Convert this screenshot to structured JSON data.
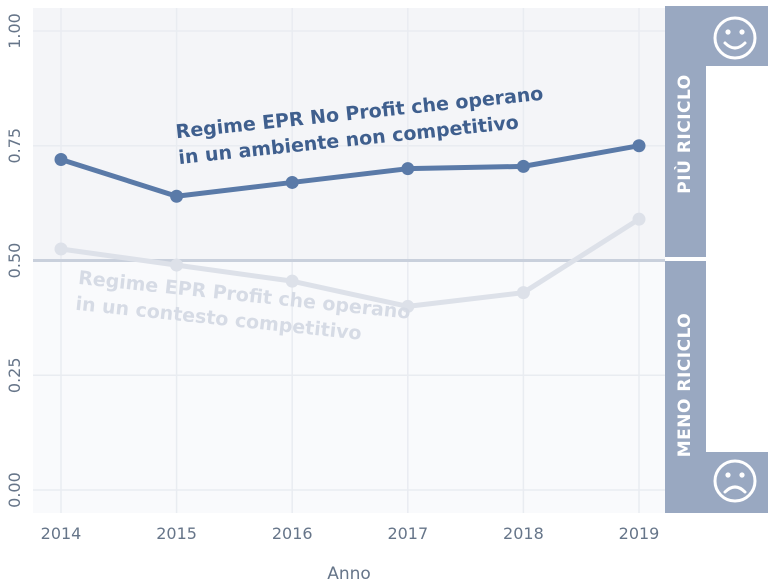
{
  "chart_data": {
    "type": "line",
    "xlabel": "Anno",
    "ylabel": "",
    "x": [
      2014,
      2015,
      2016,
      2017,
      2018,
      2019
    ],
    "ylim": [
      -0.05,
      1.05
    ],
    "yticks": [
      "0.00",
      "0.25",
      "0.50",
      "0.75",
      "1.00"
    ],
    "xticks": [
      "2014",
      "2015",
      "2016",
      "2017",
      "2018",
      "2019"
    ],
    "threshold": 0.5,
    "grid": true,
    "series": [
      {
        "name": "Regime EPR No Profit che operano in un ambiente non competitivo",
        "label_lines": [
          "Regime EPR No Profit che operano",
          "in un ambiente non competitivo"
        ],
        "values": [
          0.72,
          0.64,
          0.67,
          0.7,
          0.705,
          0.75
        ],
        "color": "#5a7aa8"
      },
      {
        "name": "Regime EPR Profit che operano in un contesto competitivo",
        "label_lines": [
          "Regime EPR Profit che operano",
          "in un contesto competitivo"
        ],
        "values": [
          0.525,
          0.49,
          0.455,
          0.4,
          0.43,
          0.59
        ],
        "color": "#dde1e9"
      }
    ],
    "bands": {
      "upper_label": "PIÙ RICICLO",
      "lower_label": "MENO RICICLO",
      "upper_icon": "smiley-face-icon",
      "lower_icon": "sad-face-icon",
      "color": "#99a8c1"
    }
  }
}
